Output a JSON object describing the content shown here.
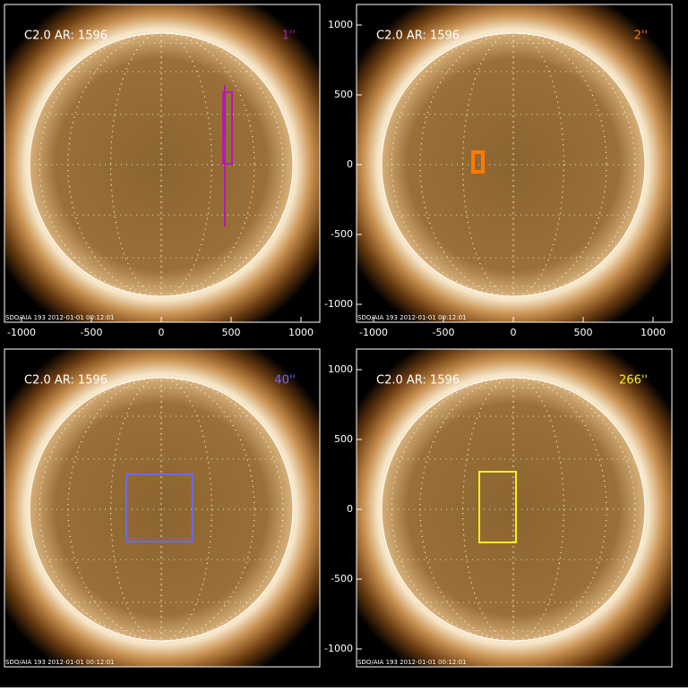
{
  "panels": [
    {
      "title": "C2.0 AR: 1596",
      "scale": "1''",
      "scale_color": "#b01cb0",
      "footer": "SDO/AIA 193  2012-01-01 00:12:01",
      "x_ticks": [
        -1000,
        -500,
        0,
        500,
        1000
      ],
      "y_ticks": []
    },
    {
      "title": "C2.0 AR: 1596",
      "scale": "2''",
      "scale_color": "#ff7a00",
      "footer": "SDO/AIA 193  2012-01-01 00:12:01",
      "x_ticks": [
        -1000,
        -500,
        0,
        500,
        1000
      ],
      "y_ticks": [
        1000,
        500,
        0,
        -500,
        -1000
      ]
    },
    {
      "title": "C2.0 AR: 1596",
      "scale": "40''",
      "scale_color": "#6a6aff",
      "footer": "SDO/AIA 193  2012-01-01 00:12:01",
      "x_ticks": [],
      "y_ticks": []
    },
    {
      "title": "C2.0 AR: 1596",
      "scale": "266''",
      "scale_color": "#f0f020",
      "footer": "SDO/AIA 193  2012-01-01 00:12:01",
      "x_ticks": [],
      "y_ticks": [
        1000,
        500,
        0,
        -500,
        -1000
      ]
    }
  ]
}
